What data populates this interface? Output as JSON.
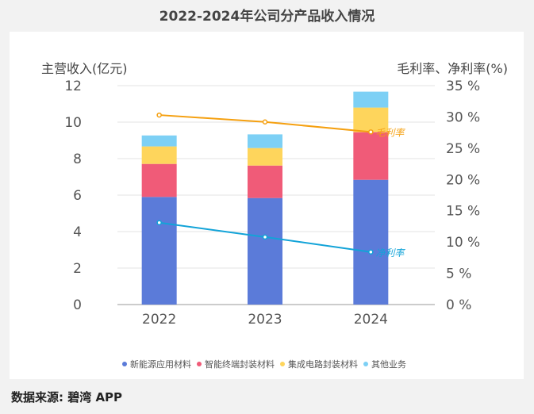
{
  "chart_data": {
    "type": "bar",
    "stacked": true,
    "title": "2022-2024年公司分产品收入情况",
    "ylabel": "主营收入(亿元)",
    "y2label": "毛利率、净利率(%)",
    "categories": [
      "2022",
      "2023",
      "2024"
    ],
    "ylim": [
      0,
      12
    ],
    "yticks": [
      "0",
      "2",
      "4",
      "6",
      "8",
      "10",
      "12"
    ],
    "y2lim": [
      0,
      35
    ],
    "y2ticks": [
      "0 %",
      "5 %",
      "10 %",
      "15 %",
      "20 %",
      "25 %",
      "30 %",
      "35 %"
    ],
    "grid": true,
    "legend": "bottom",
    "series": [
      {
        "name": "新能源应用材料",
        "values": [
          5.9,
          5.84,
          6.84
        ],
        "color": "#5b7bd9"
      },
      {
        "name": "智能终端封装材料",
        "values": [
          1.81,
          1.78,
          2.61
        ],
        "color": "#f05b78"
      },
      {
        "name": "集成电路封装材料",
        "values": [
          0.96,
          0.96,
          1.35
        ],
        "color": "#fed55c"
      },
      {
        "name": "其他业务",
        "values": [
          0.6,
          0.75,
          0.87
        ],
        "color": "#7dd0f5"
      }
    ],
    "lines": [
      {
        "name": "毛利率",
        "values": [
          30.3,
          29.2,
          27.6
        ],
        "color": "#f5a010",
        "axis": "right"
      },
      {
        "name": "净利率",
        "values": [
          13.1,
          10.8,
          8.4
        ],
        "color": "#12a3d8",
        "axis": "right"
      }
    ]
  },
  "source": "数据来源: 碧湾 APP"
}
